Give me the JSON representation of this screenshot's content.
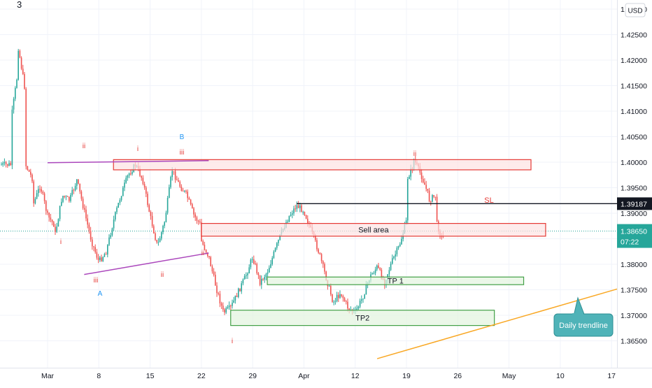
{
  "header": {
    "interval_label": "3"
  },
  "currency_button": {
    "label": "USD"
  },
  "price_axis": {
    "ticks": [
      "1.43000",
      "1.42500",
      "1.42000",
      "1.41500",
      "1.41000",
      "1.40500",
      "1.40000",
      "1.39500",
      "1.39000",
      "1.38500",
      "1.38000",
      "1.37500",
      "1.37000",
      "1.36500"
    ],
    "markers": {
      "level": {
        "price": 1.39187,
        "label": "1.39187"
      },
      "last": {
        "price": 1.3865,
        "label": "1.38650",
        "countdown": "07:22"
      }
    }
  },
  "time_axis": {
    "ticks": [
      "Mar",
      "8",
      "15",
      "22",
      "29",
      "Apr",
      "12",
      "19",
      "26",
      "May",
      "10",
      "17"
    ]
  },
  "annotations": {
    "sl": "SL",
    "wave_labels": [
      "ii",
      "i",
      "iii",
      "B",
      "i",
      "iii",
      "ii",
      "A",
      "ii",
      "ii",
      "i"
    ],
    "callout": "Daily trendline"
  },
  "zones": [
    {
      "label": "",
      "kind": "supply"
    },
    {
      "label": "Sell area",
      "kind": "supply"
    },
    {
      "label": "TP 1",
      "kind": "target"
    },
    {
      "label": "TP2",
      "kind": "target"
    }
  ],
  "colors": {
    "up": "#26a69a",
    "down": "#ef5350",
    "supply_fill": "#fde2e2",
    "supply_border": "#e53935",
    "target_fill": "#e3f4de",
    "target_border": "#43a047",
    "triangle": "#ab47bc",
    "trendline": "#f9a825",
    "callout_bg": "#4fb3b8",
    "level_line": "#131722",
    "last_price": "#26a69a",
    "wave_red": "#e53935",
    "wave_blue": "#2196f3"
  },
  "chart_data": {
    "type": "candlestick",
    "symbol_price_scale": "USD",
    "x_range": [
      "2021-02-24",
      "2021-05-21"
    ],
    "y_range": [
      1.3615,
      1.4305
    ],
    "candles_path": [
      [
        "2021-02-24",
        1.3995
      ],
      [
        "2021-02-24",
        1.408
      ],
      [
        "2021-02-25",
        1.4185
      ],
      [
        "2021-02-25",
        1.4225
      ],
      [
        "2021-02-26",
        1.4135
      ],
      [
        "2021-02-26",
        1.4075
      ],
      [
        "2021-02-26",
        1.3995
      ],
      [
        "2021-02-27",
        1.3965
      ],
      [
        "2021-02-27",
        1.3915
      ],
      [
        "2021-02-28",
        1.3955
      ],
      [
        "2021-03-01",
        1.3895
      ],
      [
        "2021-03-02",
        1.3875
      ],
      [
        "2021-03-02",
        1.3855
      ],
      [
        "2021-03-03",
        1.3935
      ],
      [
        "2021-03-04",
        1.3925
      ],
      [
        "2021-03-05",
        1.3965
      ],
      [
        "2021-03-06",
        1.3905
      ],
      [
        "2021-03-07",
        1.3845
      ],
      [
        "2021-03-08",
        1.3805
      ],
      [
        "2021-03-09",
        1.3825
      ],
      [
        "2021-03-10",
        1.3885
      ],
      [
        "2021-03-11",
        1.3935
      ],
      [
        "2021-03-12",
        1.3975
      ],
      [
        "2021-03-13",
        1.3995
      ],
      [
        "2021-03-14",
        1.3965
      ],
      [
        "2021-03-15",
        1.3895
      ],
      [
        "2021-03-16",
        1.3835
      ],
      [
        "2021-03-17",
        1.3885
      ],
      [
        "2021-03-18",
        1.3985
      ],
      [
        "2021-03-19",
        1.3955
      ],
      [
        "2021-03-20",
        1.3935
      ],
      [
        "2021-03-21",
        1.3895
      ],
      [
        "2021-03-22",
        1.3875
      ],
      [
        "2021-03-22",
        1.3845
      ],
      [
        "2021-03-23",
        1.3815
      ],
      [
        "2021-03-24",
        1.3755
      ],
      [
        "2021-03-25",
        1.3705
      ],
      [
        "2021-03-26",
        1.3715
      ],
      [
        "2021-03-27",
        1.3745
      ],
      [
        "2021-03-28",
        1.3775
      ],
      [
        "2021-03-29",
        1.3815
      ],
      [
        "2021-03-30",
        1.3765
      ],
      [
        "2021-03-31",
        1.3785
      ],
      [
        "2021-04-01",
        1.3825
      ],
      [
        "2021-04-02",
        1.3865
      ],
      [
        "2021-04-03",
        1.3895
      ],
      [
        "2021-04-04",
        1.3915
      ],
      [
        "2021-04-05",
        1.3905
      ],
      [
        "2021-04-06",
        1.3865
      ],
      [
        "2021-04-07",
        1.3825
      ],
      [
        "2021-04-08",
        1.3775
      ],
      [
        "2021-04-09",
        1.3725
      ],
      [
        "2021-04-10",
        1.3745
      ],
      [
        "2021-04-11",
        1.3715
      ],
      [
        "2021-04-12",
        1.3705
      ],
      [
        "2021-04-13",
        1.3735
      ],
      [
        "2021-04-14",
        1.3775
      ],
      [
        "2021-04-15",
        1.3795
      ],
      [
        "2021-04-16",
        1.3765
      ],
      [
        "2021-04-17",
        1.3805
      ],
      [
        "2021-04-18",
        1.3835
      ],
      [
        "2021-04-19",
        1.3885
      ],
      [
        "2021-04-19",
        1.3965
      ],
      [
        "2021-04-20",
        1.3995
      ],
      [
        "2021-04-20",
        1.4005
      ],
      [
        "2021-04-21",
        1.3975
      ],
      [
        "2021-04-22",
        1.3935
      ],
      [
        "2021-04-22",
        1.3925
      ],
      [
        "2021-04-23",
        1.3935
      ],
      [
        "2021-04-23",
        1.3885
      ],
      [
        "2021-04-24",
        1.3845
      ],
      [
        "2021-04-24",
        1.3835
      ],
      [
        "2021-04-24",
        1.3855
      ],
      [
        "2021-04-25",
        1.3865
      ]
    ],
    "zones": [
      {
        "label": "",
        "from": "2021-03-10",
        "to": "2021-05-06",
        "price_high": 1.4005,
        "price_low": 1.3985
      },
      {
        "label": "Sell area",
        "from": "2021-03-22",
        "to": "2021-05-08",
        "price_high": 1.388,
        "price_low": 1.3855
      },
      {
        "label": "TP 1",
        "from": "2021-03-31",
        "to": "2021-05-05",
        "price_high": 1.3775,
        "price_low": 1.376
      },
      {
        "label": "TP2",
        "from": "2021-03-26",
        "to": "2021-05-01",
        "price_high": 1.371,
        "price_low": 1.368
      }
    ],
    "lines": [
      {
        "name": "SL",
        "price": 1.39187,
        "from": "2021-04-04"
      },
      {
        "name": "triangle-top",
        "points": [
          [
            "2021-03-01",
            1.3999
          ],
          [
            "2021-03-23",
            1.4003
          ]
        ]
      },
      {
        "name": "triangle-bottom",
        "points": [
          [
            "2021-03-06",
            1.378
          ],
          [
            "2021-03-23",
            1.3822
          ]
        ]
      },
      {
        "name": "Daily trendline",
        "points": [
          [
            "2021-04-15",
            1.3615
          ],
          [
            "2021-05-21",
            1.3765
          ]
        ]
      }
    ],
    "last_price": 1.3865,
    "grid": true,
    "legend": "none"
  }
}
